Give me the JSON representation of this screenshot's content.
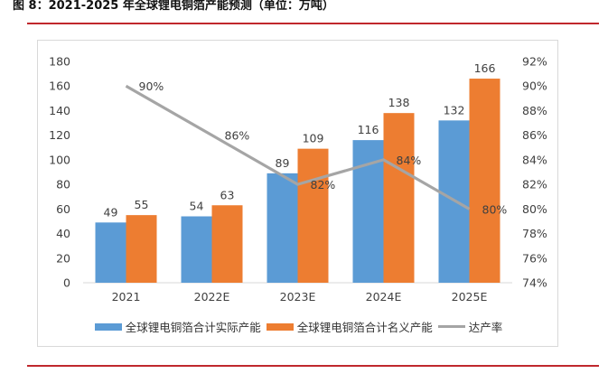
{
  "caption": "图 8：2021-2025 年全球锂电铜箔产能预测（单位：万吨）",
  "colors": {
    "actual": "#5b9bd5",
    "nominal": "#ed7d31",
    "rate": "#a5a5a5",
    "rule": "#c0282d"
  },
  "chart_data": {
    "type": "bar",
    "categories": [
      "2021",
      "2022E",
      "2023E",
      "2024E",
      "2025E"
    ],
    "series": [
      {
        "name": "全球锂电铜箔合计实际产能",
        "kind": "bar",
        "axis": "left",
        "values": [
          49,
          54,
          89,
          116,
          132
        ],
        "labels": [
          "49",
          "54",
          "89",
          "116",
          "132"
        ]
      },
      {
        "name": "全球锂电铜箔合计名义产能",
        "kind": "bar",
        "axis": "left",
        "values": [
          55,
          63,
          109,
          138,
          166
        ],
        "labels": [
          "55",
          "63",
          "109",
          "138",
          "166"
        ]
      },
      {
        "name": "达产率",
        "kind": "line",
        "axis": "right",
        "values": [
          90,
          86,
          82,
          84,
          80
        ],
        "labels": [
          "90%",
          "86%",
          "82%",
          "84%",
          "80%"
        ]
      }
    ],
    "y_left": {
      "min": 0,
      "max": 180,
      "ticks": [
        "0",
        "20",
        "40",
        "60",
        "80",
        "100",
        "120",
        "140",
        "160",
        "180"
      ]
    },
    "y_right": {
      "min": 74,
      "max": 92,
      "ticks": [
        "74%",
        "76%",
        "78%",
        "80%",
        "82%",
        "84%",
        "86%",
        "88%",
        "90%",
        "92%"
      ]
    },
    "grid": false,
    "legend_position": "bottom"
  }
}
